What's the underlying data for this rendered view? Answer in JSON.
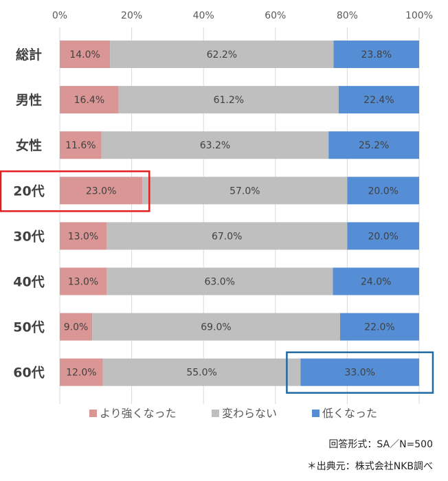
{
  "chart_data": {
    "type": "bar",
    "orientation": "horizontal",
    "stacked": "percent",
    "categories": [
      "総計",
      "男性",
      "女性",
      "20代",
      "30代",
      "40代",
      "50代",
      "60代"
    ],
    "series": [
      {
        "name": "より強くなった",
        "color": "#d99694",
        "values": [
          14.0,
          16.4,
          11.6,
          23.0,
          13.0,
          13.0,
          9.0,
          12.0
        ]
      },
      {
        "name": "変わらない",
        "color": "#bfbfbf",
        "values": [
          62.2,
          61.2,
          63.2,
          57.0,
          67.0,
          63.0,
          69.0,
          55.0
        ]
      },
      {
        "name": "低くなった",
        "color": "#558ed5",
        "values": [
          23.8,
          22.4,
          25.2,
          20.0,
          20.0,
          24.0,
          22.0,
          33.0
        ]
      }
    ],
    "xlim": [
      0,
      100
    ],
    "xticks": [
      "0%",
      "20%",
      "40%",
      "60%",
      "80%",
      "100%"
    ],
    "x_axis_position": "top",
    "grid": true,
    "legend_position": "bottom",
    "highlights": [
      {
        "category": "20代",
        "series": "より強くなった",
        "color": "#e02020"
      },
      {
        "category": "60代",
        "series": "低くなった",
        "color": "#1f6aa5"
      }
    ]
  },
  "notes": {
    "format": "回答形式：SA／N=500",
    "source": "＊出典元：株式会社NKB調べ"
  }
}
